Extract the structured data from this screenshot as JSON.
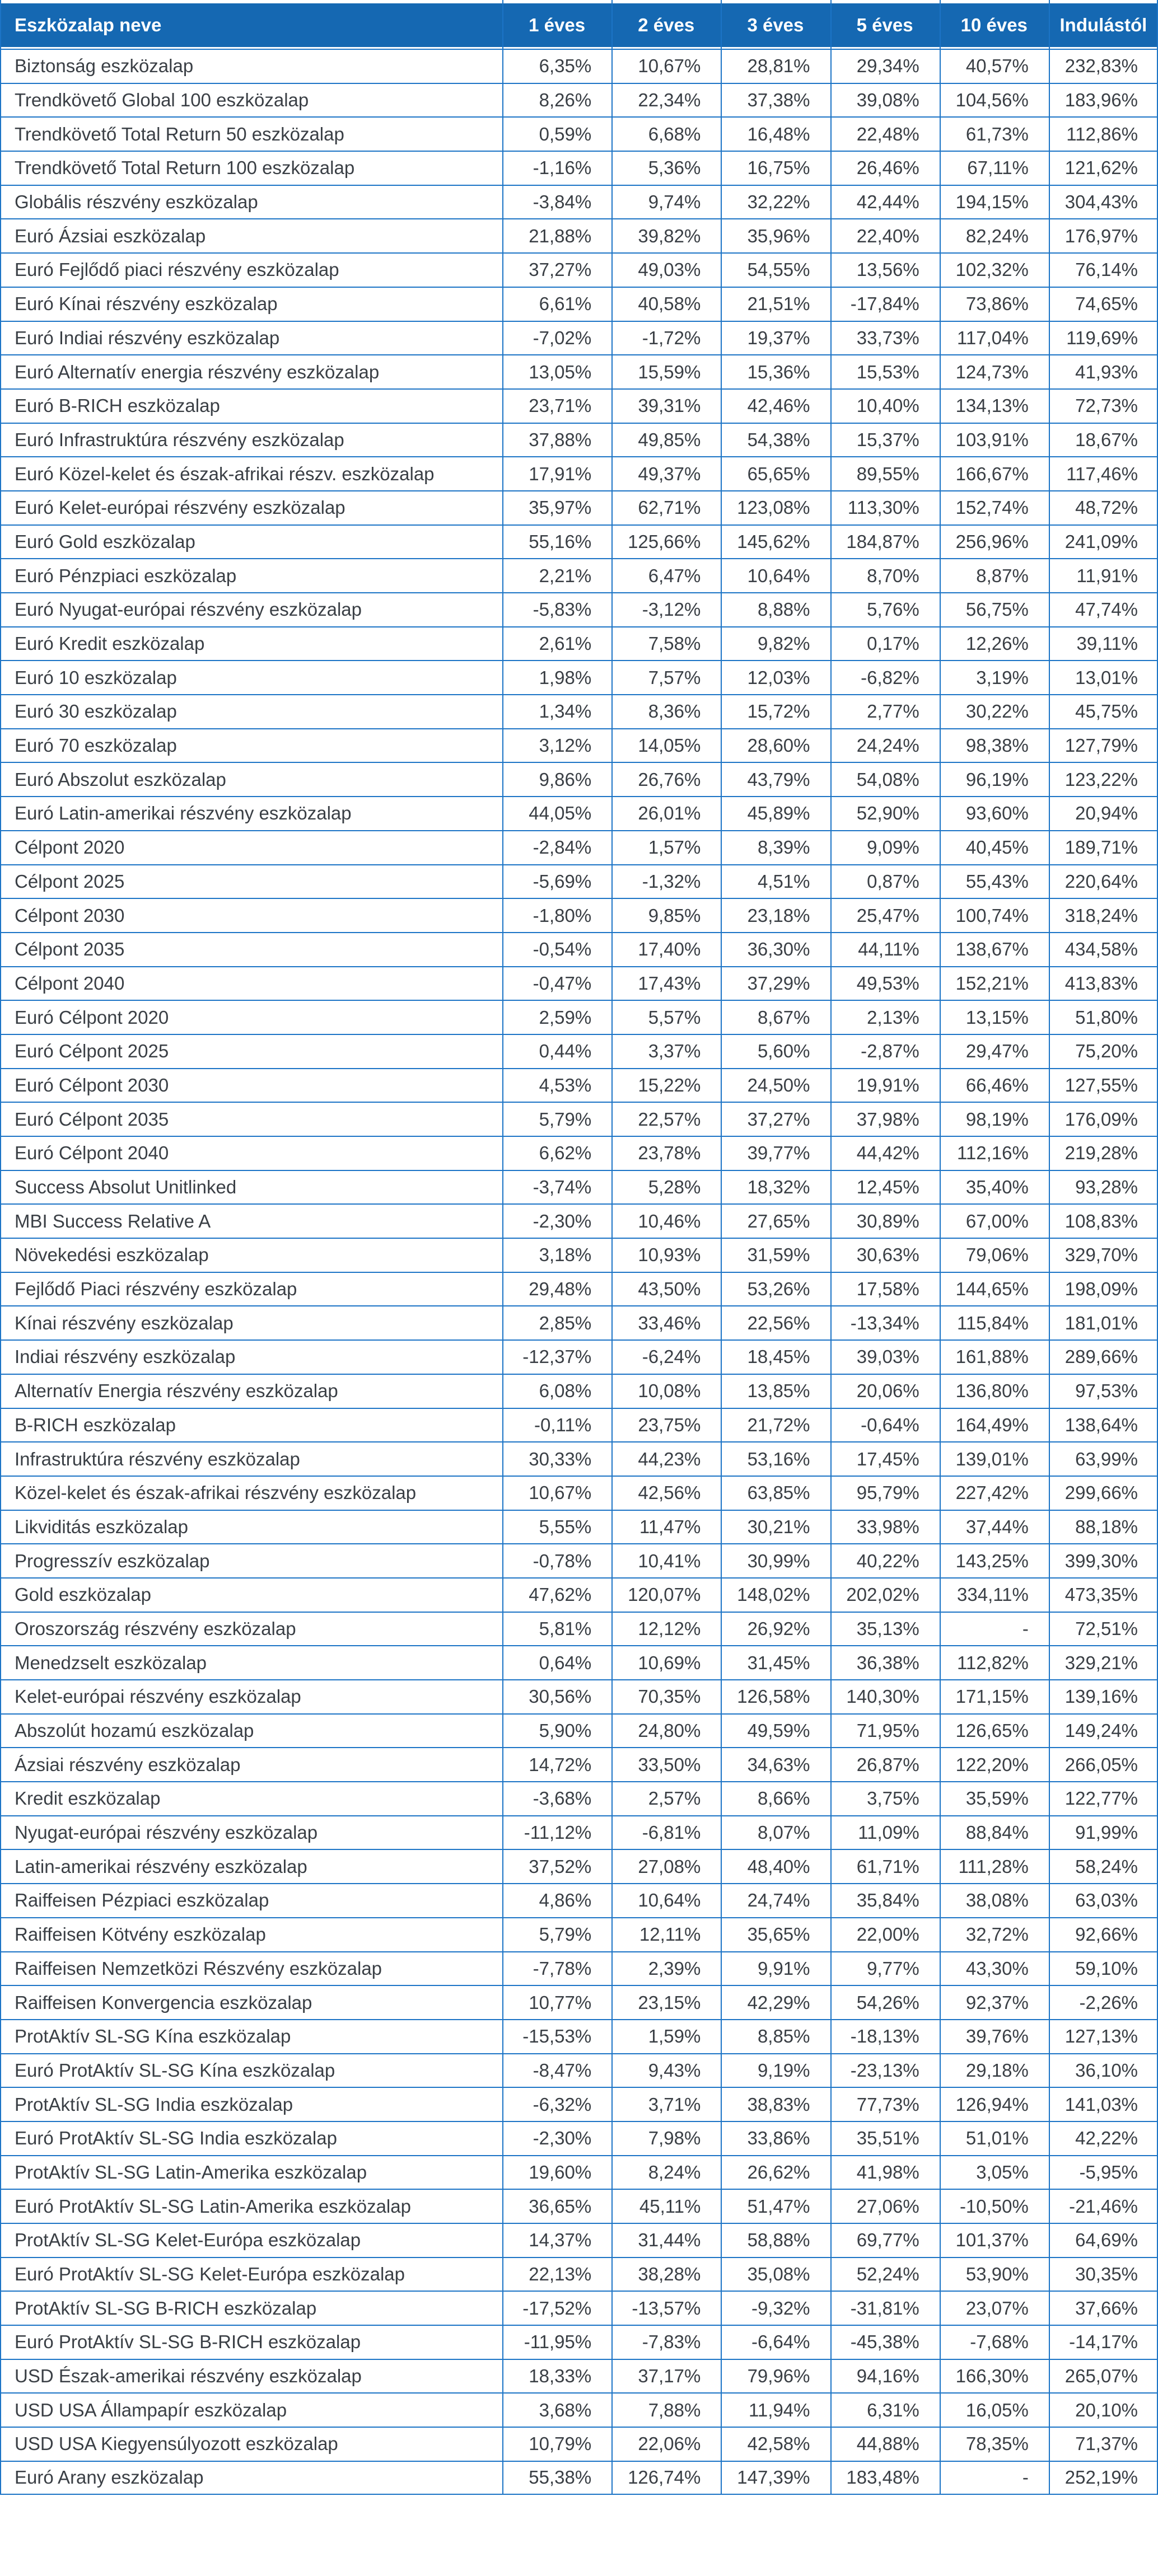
{
  "theme": {
    "header_bg": "#1568B2",
    "grid_line": "#1C74C6",
    "row_bg": "#FFFFFF",
    "text": "#3A3F45",
    "header_text": "#FFFFFF"
  },
  "table": {
    "columns": [
      "Eszközalap neve",
      "1 éves",
      "2 éves",
      "3 éves",
      "5 éves",
      "10 éves",
      "Indulástól"
    ],
    "missing_value_placeholder": "-",
    "rows": [
      {
        "name": "Biztonság eszközalap",
        "values": [
          "6,35%",
          "10,67%",
          "28,81%",
          "29,34%",
          "40,57%",
          "232,83%"
        ]
      },
      {
        "name": "Trendkövető Global 100 eszközalap",
        "values": [
          "8,26%",
          "22,34%",
          "37,38%",
          "39,08%",
          "104,56%",
          "183,96%"
        ]
      },
      {
        "name": "Trendkövető Total Return 50 eszközalap",
        "values": [
          "0,59%",
          "6,68%",
          "16,48%",
          "22,48%",
          "61,73%",
          "112,86%"
        ]
      },
      {
        "name": "Trendkövető Total Return 100 eszközalap",
        "values": [
          "-1,16%",
          "5,36%",
          "16,75%",
          "26,46%",
          "67,11%",
          "121,62%"
        ]
      },
      {
        "name": "Globális részvény eszközalap",
        "values": [
          "-3,84%",
          "9,74%",
          "32,22%",
          "42,44%",
          "194,15%",
          "304,43%"
        ]
      },
      {
        "name": "Euró Ázsiai eszközalap",
        "values": [
          "21,88%",
          "39,82%",
          "35,96%",
          "22,40%",
          "82,24%",
          "176,97%"
        ]
      },
      {
        "name": "Euró Fejlődő piaci részvény eszközalap",
        "values": [
          "37,27%",
          "49,03%",
          "54,55%",
          "13,56%",
          "102,32%",
          "76,14%"
        ]
      },
      {
        "name": "Euró Kínai részvény eszközalap",
        "values": [
          "6,61%",
          "40,58%",
          "21,51%",
          "-17,84%",
          "73,86%",
          "74,65%"
        ]
      },
      {
        "name": "Euró Indiai részvény eszközalap",
        "values": [
          "-7,02%",
          "-1,72%",
          "19,37%",
          "33,73%",
          "117,04%",
          "119,69%"
        ]
      },
      {
        "name": "Euró Alternatív energia részvény eszközalap",
        "values": [
          "13,05%",
          "15,59%",
          "15,36%",
          "15,53%",
          "124,73%",
          "41,93%"
        ]
      },
      {
        "name": "Euró B-RICH eszközalap",
        "values": [
          "23,71%",
          "39,31%",
          "42,46%",
          "10,40%",
          "134,13%",
          "72,73%"
        ]
      },
      {
        "name": "Euró Infrastruktúra részvény eszközalap",
        "values": [
          "37,88%",
          "49,85%",
          "54,38%",
          "15,37%",
          "103,91%",
          "18,67%"
        ]
      },
      {
        "name": "Euró Közel-kelet és észak-afrikai részv. eszközalap",
        "values": [
          "17,91%",
          "49,37%",
          "65,65%",
          "89,55%",
          "166,67%",
          "117,46%"
        ]
      },
      {
        "name": "Euró Kelet-európai részvény eszközalap",
        "values": [
          "35,97%",
          "62,71%",
          "123,08%",
          "113,30%",
          "152,74%",
          "48,72%"
        ]
      },
      {
        "name": "Euró Gold eszközalap",
        "values": [
          "55,16%",
          "125,66%",
          "145,62%",
          "184,87%",
          "256,96%",
          "241,09%"
        ]
      },
      {
        "name": "Euró Pénzpiaci eszközalap",
        "values": [
          "2,21%",
          "6,47%",
          "10,64%",
          "8,70%",
          "8,87%",
          "11,91%"
        ]
      },
      {
        "name": "Euró Nyugat-európai részvény eszközalap",
        "values": [
          "-5,83%",
          "-3,12%",
          "8,88%",
          "5,76%",
          "56,75%",
          "47,74%"
        ]
      },
      {
        "name": "Euró Kredit eszközalap",
        "values": [
          "2,61%",
          "7,58%",
          "9,82%",
          "0,17%",
          "12,26%",
          "39,11%"
        ]
      },
      {
        "name": "Euró 10 eszközalap",
        "values": [
          "1,98%",
          "7,57%",
          "12,03%",
          "-6,82%",
          "3,19%",
          "13,01%"
        ]
      },
      {
        "name": "Euró 30 eszközalap",
        "values": [
          "1,34%",
          "8,36%",
          "15,72%",
          "2,77%",
          "30,22%",
          "45,75%"
        ]
      },
      {
        "name": "Euró 70 eszközalap",
        "values": [
          "3,12%",
          "14,05%",
          "28,60%",
          "24,24%",
          "98,38%",
          "127,79%"
        ]
      },
      {
        "name": "Euró Abszolut eszközalap",
        "values": [
          "9,86%",
          "26,76%",
          "43,79%",
          "54,08%",
          "96,19%",
          "123,22%"
        ]
      },
      {
        "name": "Euró Latin-amerikai részvény eszközalap",
        "values": [
          "44,05%",
          "26,01%",
          "45,89%",
          "52,90%",
          "93,60%",
          "20,94%"
        ]
      },
      {
        "name": "Célpont 2020",
        "values": [
          "-2,84%",
          "1,57%",
          "8,39%",
          "9,09%",
          "40,45%",
          "189,71%"
        ]
      },
      {
        "name": "Célpont 2025",
        "values": [
          "-5,69%",
          "-1,32%",
          "4,51%",
          "0,87%",
          "55,43%",
          "220,64%"
        ]
      },
      {
        "name": "Célpont 2030",
        "values": [
          "-1,80%",
          "9,85%",
          "23,18%",
          "25,47%",
          "100,74%",
          "318,24%"
        ]
      },
      {
        "name": "Célpont 2035",
        "values": [
          "-0,54%",
          "17,40%",
          "36,30%",
          "44,11%",
          "138,67%",
          "434,58%"
        ]
      },
      {
        "name": "Célpont 2040",
        "values": [
          "-0,47%",
          "17,43%",
          "37,29%",
          "49,53%",
          "152,21%",
          "413,83%"
        ]
      },
      {
        "name": "Euró Célpont 2020",
        "values": [
          "2,59%",
          "5,57%",
          "8,67%",
          "2,13%",
          "13,15%",
          "51,80%"
        ]
      },
      {
        "name": "Euró Célpont 2025",
        "values": [
          "0,44%",
          "3,37%",
          "5,60%",
          "-2,87%",
          "29,47%",
          "75,20%"
        ]
      },
      {
        "name": "Euró Célpont 2030",
        "values": [
          "4,53%",
          "15,22%",
          "24,50%",
          "19,91%",
          "66,46%",
          "127,55%"
        ]
      },
      {
        "name": "Euró Célpont 2035",
        "values": [
          "5,79%",
          "22,57%",
          "37,27%",
          "37,98%",
          "98,19%",
          "176,09%"
        ]
      },
      {
        "name": "Euró Célpont 2040",
        "values": [
          "6,62%",
          "23,78%",
          "39,77%",
          "44,42%",
          "112,16%",
          "219,28%"
        ]
      },
      {
        "name": "Success Absolut Unitlinked",
        "values": [
          "-3,74%",
          "5,28%",
          "18,32%",
          "12,45%",
          "35,40%",
          "93,28%"
        ]
      },
      {
        "name": "MBI Success Relative A",
        "values": [
          "-2,30%",
          "10,46%",
          "27,65%",
          "30,89%",
          "67,00%",
          "108,83%"
        ]
      },
      {
        "name": "Növekedési eszközalap",
        "values": [
          "3,18%",
          "10,93%",
          "31,59%",
          "30,63%",
          "79,06%",
          "329,70%"
        ]
      },
      {
        "name": "Fejlődő Piaci részvény eszközalap",
        "values": [
          "29,48%",
          "43,50%",
          "53,26%",
          "17,58%",
          "144,65%",
          "198,09%"
        ]
      },
      {
        "name": "Kínai részvény eszközalap",
        "values": [
          "2,85%",
          "33,46%",
          "22,56%",
          "-13,34%",
          "115,84%",
          "181,01%"
        ]
      },
      {
        "name": "Indiai részvény eszközalap",
        "values": [
          "-12,37%",
          "-6,24%",
          "18,45%",
          "39,03%",
          "161,88%",
          "289,66%"
        ]
      },
      {
        "name": "Alternatív Energia részvény eszközalap",
        "values": [
          "6,08%",
          "10,08%",
          "13,85%",
          "20,06%",
          "136,80%",
          "97,53%"
        ]
      },
      {
        "name": "B-RICH eszközalap",
        "values": [
          "-0,11%",
          "23,75%",
          "21,72%",
          "-0,64%",
          "164,49%",
          "138,64%"
        ]
      },
      {
        "name": "Infrastruktúra részvény eszközalap",
        "values": [
          "30,33%",
          "44,23%",
          "53,16%",
          "17,45%",
          "139,01%",
          "63,99%"
        ]
      },
      {
        "name": "Közel-kelet és észak-afrikai részvény eszközalap",
        "values": [
          "10,67%",
          "42,56%",
          "63,85%",
          "95,79%",
          "227,42%",
          "299,66%"
        ]
      },
      {
        "name": "Likviditás eszközalap",
        "values": [
          "5,55%",
          "11,47%",
          "30,21%",
          "33,98%",
          "37,44%",
          "88,18%"
        ]
      },
      {
        "name": "Progresszív eszközalap",
        "values": [
          "-0,78%",
          "10,41%",
          "30,99%",
          "40,22%",
          "143,25%",
          "399,30%"
        ]
      },
      {
        "name": "Gold eszközalap",
        "values": [
          "47,62%",
          "120,07%",
          "148,02%",
          "202,02%",
          "334,11%",
          "473,35%"
        ]
      },
      {
        "name": "Oroszország részvény eszközalap",
        "values": [
          "5,81%",
          "12,12%",
          "26,92%",
          "35,13%",
          "-",
          "72,51%"
        ]
      },
      {
        "name": "Menedzselt eszközalap",
        "values": [
          "0,64%",
          "10,69%",
          "31,45%",
          "36,38%",
          "112,82%",
          "329,21%"
        ]
      },
      {
        "name": "Kelet-európai részvény eszközalap",
        "values": [
          "30,56%",
          "70,35%",
          "126,58%",
          "140,30%",
          "171,15%",
          "139,16%"
        ]
      },
      {
        "name": "Abszolút hozamú eszközalap",
        "values": [
          "5,90%",
          "24,80%",
          "49,59%",
          "71,95%",
          "126,65%",
          "149,24%"
        ]
      },
      {
        "name": "Ázsiai részvény eszközalap",
        "values": [
          "14,72%",
          "33,50%",
          "34,63%",
          "26,87%",
          "122,20%",
          "266,05%"
        ]
      },
      {
        "name": "Kredit eszközalap",
        "values": [
          "-3,68%",
          "2,57%",
          "8,66%",
          "3,75%",
          "35,59%",
          "122,77%"
        ]
      },
      {
        "name": "Nyugat-európai részvény eszközalap",
        "values": [
          "-11,12%",
          "-6,81%",
          "8,07%",
          "11,09%",
          "88,84%",
          "91,99%"
        ]
      },
      {
        "name": "Latin-amerikai részvény eszközalap",
        "values": [
          "37,52%",
          "27,08%",
          "48,40%",
          "61,71%",
          "111,28%",
          "58,24%"
        ]
      },
      {
        "name": "Raiffeisen Pézpiaci eszközalap",
        "values": [
          "4,86%",
          "10,64%",
          "24,74%",
          "35,84%",
          "38,08%",
          "63,03%"
        ]
      },
      {
        "name": "Raiffeisen Kötvény eszközalap",
        "values": [
          "5,79%",
          "12,11%",
          "35,65%",
          "22,00%",
          "32,72%",
          "92,66%"
        ]
      },
      {
        "name": "Raiffeisen Nemzetközi Részvény eszközalap",
        "values": [
          "-7,78%",
          "2,39%",
          "9,91%",
          "9,77%",
          "43,30%",
          "59,10%"
        ]
      },
      {
        "name": "Raiffeisen Konvergencia eszközalap",
        "values": [
          "10,77%",
          "23,15%",
          "42,29%",
          "54,26%",
          "92,37%",
          "-2,26%"
        ]
      },
      {
        "name": "ProtAktív SL-SG Kína eszközalap",
        "values": [
          "-15,53%",
          "1,59%",
          "8,85%",
          "-18,13%",
          "39,76%",
          "127,13%"
        ]
      },
      {
        "name": "Euró ProtAktív SL-SG Kína eszközalap",
        "values": [
          "-8,47%",
          "9,43%",
          "9,19%",
          "-23,13%",
          "29,18%",
          "36,10%"
        ]
      },
      {
        "name": "ProtAktív SL-SG India eszközalap",
        "values": [
          "-6,32%",
          "3,71%",
          "38,83%",
          "77,73%",
          "126,94%",
          "141,03%"
        ]
      },
      {
        "name": "Euró ProtAktív SL-SG India eszközalap",
        "values": [
          "-2,30%",
          "7,98%",
          "33,86%",
          "35,51%",
          "51,01%",
          "42,22%"
        ]
      },
      {
        "name": "ProtAktív SL-SG Latin-Amerika eszközalap",
        "values": [
          "19,60%",
          "8,24%",
          "26,62%",
          "41,98%",
          "3,05%",
          "-5,95%"
        ]
      },
      {
        "name": "Euró ProtAktív SL-SG Latin-Amerika eszközalap",
        "values": [
          "36,65%",
          "45,11%",
          "51,47%",
          "27,06%",
          "-10,50%",
          "-21,46%"
        ]
      },
      {
        "name": "ProtAktív SL-SG Kelet-Európa eszközalap",
        "values": [
          "14,37%",
          "31,44%",
          "58,88%",
          "69,77%",
          "101,37%",
          "64,69%"
        ]
      },
      {
        "name": "Euró ProtAktív SL-SG Kelet-Európa eszközalap",
        "values": [
          "22,13%",
          "38,28%",
          "35,08%",
          "52,24%",
          "53,90%",
          "30,35%"
        ]
      },
      {
        "name": "ProtAktív SL-SG B-RICH eszközalap",
        "values": [
          "-17,52%",
          "-13,57%",
          "-9,32%",
          "-31,81%",
          "23,07%",
          "37,66%"
        ]
      },
      {
        "name": "Euró ProtAktív SL-SG B-RICH eszközalap",
        "values": [
          "-11,95%",
          "-7,83%",
          "-6,64%",
          "-45,38%",
          "-7,68%",
          "-14,17%"
        ]
      },
      {
        "name": "USD Észak-amerikai részvény eszközalap",
        "values": [
          "18,33%",
          "37,17%",
          "79,96%",
          "94,16%",
          "166,30%",
          "265,07%"
        ]
      },
      {
        "name": "USD USA Állampapír eszközalap",
        "values": [
          "3,68%",
          "7,88%",
          "11,94%",
          "6,31%",
          "16,05%",
          "20,10%"
        ]
      },
      {
        "name": "USD USA Kiegyensúlyozott eszközalap",
        "values": [
          "10,79%",
          "22,06%",
          "42,58%",
          "44,88%",
          "78,35%",
          "71,37%"
        ]
      },
      {
        "name": "Euró Arany eszközalap",
        "values": [
          "55,38%",
          "126,74%",
          "147,39%",
          "183,48%",
          "-",
          "252,19%"
        ]
      }
    ]
  }
}
